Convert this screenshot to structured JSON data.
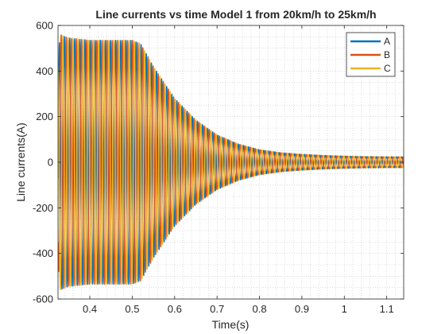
{
  "chart_data": {
    "type": "line",
    "title": "Line currents vs time Model 1 from 20km/h to 25km/h",
    "xlabel": "Time(s)",
    "ylabel": "Line currents(A)",
    "xlim": [
      0.325,
      1.14
    ],
    "ylim": [
      -600,
      600
    ],
    "xticks": [
      0.4,
      0.5,
      0.6,
      0.7,
      0.8,
      0.9,
      1,
      1.1
    ],
    "xtick_labels": [
      "0.4",
      "0.5",
      "0.6",
      "0.7",
      "0.8",
      "0.9",
      "1",
      "1.1"
    ],
    "yticks": [
      600,
      400,
      200,
      0,
      -200,
      -400,
      -600
    ],
    "ytick_labels": [
      "600",
      "400",
      "200",
      "0",
      "-200",
      "-400",
      "-600"
    ],
    "grid": "minor dotted",
    "legend_position": "top-right",
    "series": [
      {
        "name": "A",
        "color": "#0072BD",
        "phase_deg": 0
      },
      {
        "name": "B",
        "color": "#D95319",
        "phase_deg": -120
      },
      {
        "name": "C",
        "color": "#EDB120",
        "phase_deg": 120
      }
    ],
    "envelope": {
      "x": [
        0.325,
        0.33,
        0.35,
        0.4,
        0.45,
        0.5,
        0.52,
        0.55,
        0.6,
        0.65,
        0.7,
        0.75,
        0.8,
        0.85,
        0.9,
        0.95,
        1.0,
        1.05,
        1.1,
        1.14
      ],
      "peak": [
        450,
        560,
        545,
        535,
        535,
        535,
        520,
        420,
        280,
        185,
        120,
        80,
        55,
        42,
        35,
        30,
        27,
        25,
        24,
        24
      ]
    },
    "oscillation_frequency_hz": 83
  }
}
